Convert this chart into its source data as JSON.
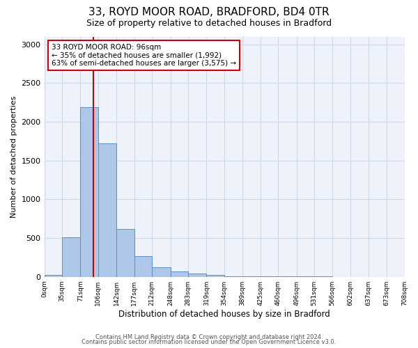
{
  "title_line1": "33, ROYD MOOR ROAD, BRADFORD, BD4 0TR",
  "title_line2": "Size of property relative to detached houses in Bradford",
  "xlabel": "Distribution of detached houses by size in Bradford",
  "ylabel": "Number of detached properties",
  "bar_color": "#aec6e8",
  "bar_edge_color": "#5b8ec4",
  "bins": [
    0,
    35,
    71,
    106,
    142,
    177,
    212,
    248,
    283,
    319,
    354,
    389,
    425,
    460,
    496,
    531,
    566,
    602,
    637,
    673,
    708
  ],
  "bin_labels": [
    "0sqm",
    "35sqm",
    "71sqm",
    "106sqm",
    "142sqm",
    "177sqm",
    "212sqm",
    "248sqm",
    "283sqm",
    "319sqm",
    "354sqm",
    "389sqm",
    "425sqm",
    "460sqm",
    "496sqm",
    "531sqm",
    "566sqm",
    "602sqm",
    "637sqm",
    "673sqm",
    "708sqm"
  ],
  "bar_heights": [
    20,
    510,
    2190,
    1720,
    620,
    270,
    120,
    70,
    45,
    20,
    10,
    5,
    5,
    2,
    2,
    2,
    1,
    1,
    1,
    1
  ],
  "ylim": [
    0,
    3100
  ],
  "yticks": [
    0,
    500,
    1000,
    1500,
    2000,
    2500,
    3000
  ],
  "property_size": 96,
  "vline_color": "#cc0000",
  "annotation_line1": "33 ROYD MOOR ROAD: 96sqm",
  "annotation_line2": "← 35% of detached houses are smaller (1,992)",
  "annotation_line3": "63% of semi-detached houses are larger (3,575) →",
  "annotation_box_color": "white",
  "annotation_box_edge": "#cc0000",
  "footnote1": "Contains HM Land Registry data © Crown copyright and database right 2024.",
  "footnote2": "Contains public sector information licensed under the Open Government Licence v3.0.",
  "grid_color": "#d0d8e8",
  "background_color": "#eef2fa"
}
